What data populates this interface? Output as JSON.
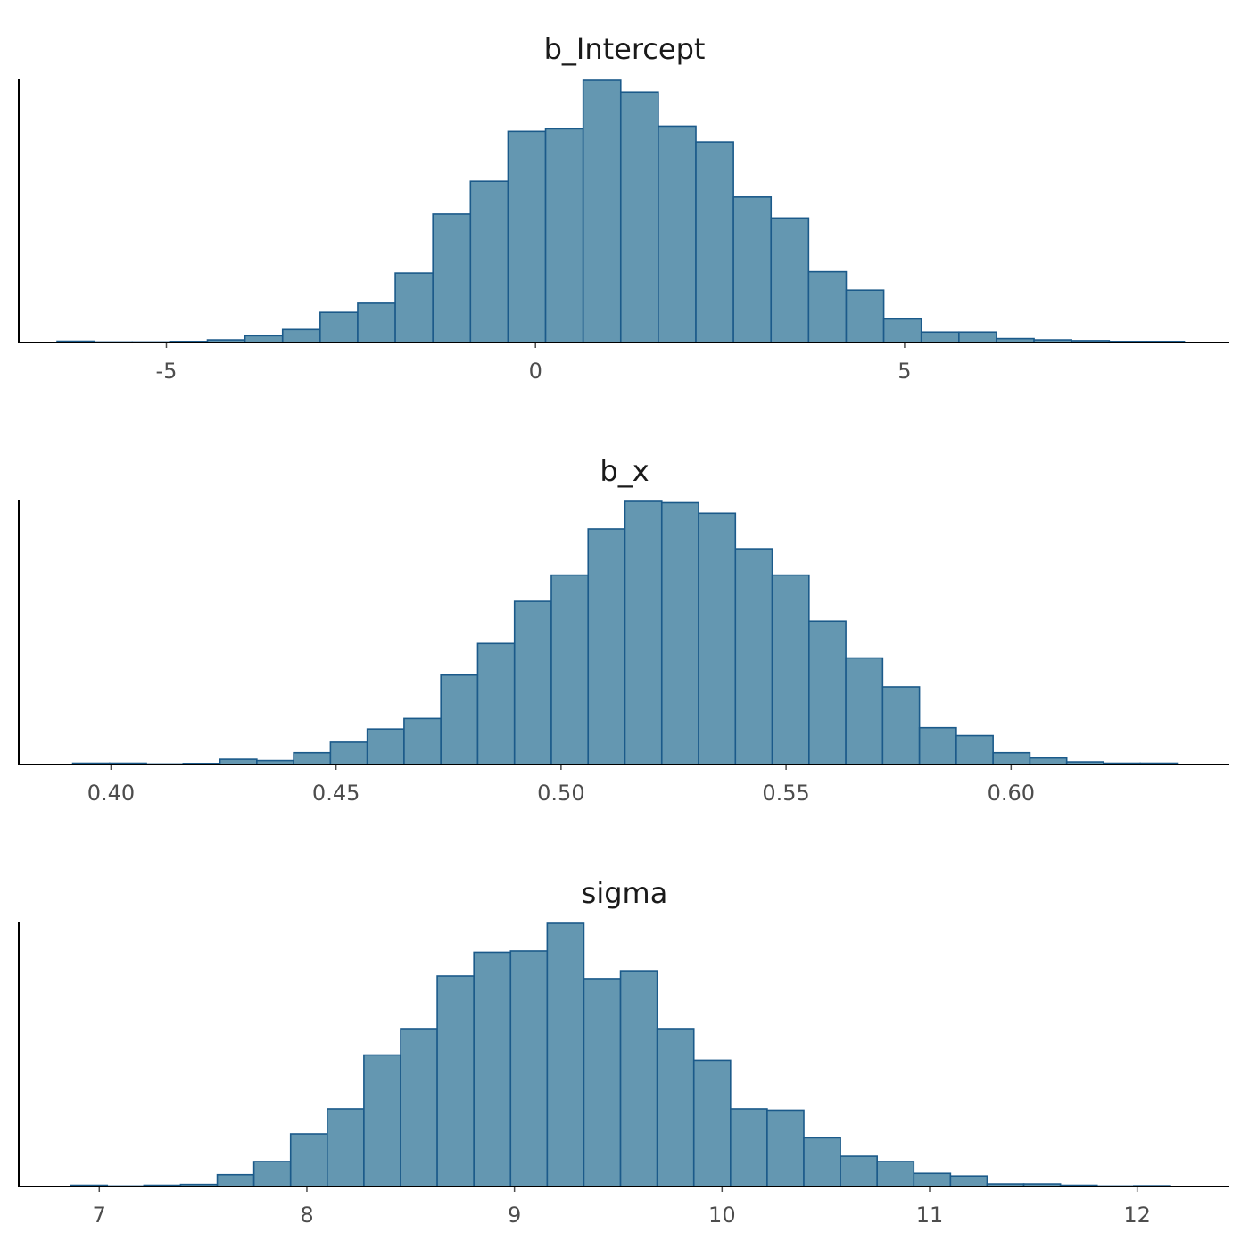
{
  "chart_data": [
    {
      "type": "bar",
      "title": "b_Intercept",
      "xlabel": "",
      "ylabel": "",
      "xlim": [
        -7.0,
        9.4
      ],
      "xticks": [
        -5,
        0,
        5
      ],
      "tick_labels": [
        "-5",
        "0",
        "5"
      ],
      "bin_start": -6.48,
      "bin_width": 0.509,
      "values": [
        0.5,
        0.2,
        0.2,
        0.4,
        1,
        2.6,
        5,
        11.5,
        15,
        26.5,
        49,
        61.5,
        80.5,
        81.5,
        100,
        95.5,
        82.5,
        76.5,
        55.5,
        47.5,
        27,
        20,
        9,
        4,
        4,
        1.5,
        1,
        0.7,
        0.4,
        0.4
      ],
      "grid": false,
      "legend": "none"
    },
    {
      "type": "bar",
      "title": "b_x",
      "xlabel": "",
      "ylabel": "",
      "xlim": [
        0.3795,
        0.6485
      ],
      "xticks": [
        0.4,
        0.45,
        0.5,
        0.55,
        0.6
      ],
      "tick_labels": [
        "0.40",
        "0.45",
        "0.50",
        "0.55",
        "0.60"
      ],
      "bin_start": 0.3915,
      "bin_width": 0.00818,
      "values": [
        0.5,
        0.5,
        0.2,
        0.4,
        2,
        1.5,
        4.5,
        8.5,
        13.5,
        17.5,
        34,
        46,
        62,
        72,
        89.5,
        100,
        99.5,
        95.5,
        82,
        72,
        54.5,
        40.5,
        29.5,
        14,
        11,
        4.5,
        2.5,
        1,
        0.5,
        0.5
      ],
      "grid": false,
      "legend": "none"
    },
    {
      "type": "bar",
      "title": "sigma",
      "xlabel": "",
      "ylabel": "",
      "xlim": [
        6.612,
        12.444
      ],
      "xticks": [
        7,
        8,
        9,
        10,
        11,
        12
      ],
      "tick_labels": [
        "7",
        "8",
        "9",
        "10",
        "11",
        "12"
      ],
      "bin_start": 6.862,
      "bin_width": 0.1766,
      "values": [
        0.5,
        0.2,
        0.5,
        0.8,
        4.5,
        9.5,
        20,
        29.5,
        50,
        60,
        80,
        89,
        89.5,
        100,
        79,
        82,
        60,
        48,
        29.5,
        29,
        18.5,
        11.5,
        9.5,
        5,
        4,
        1,
        1,
        0.5,
        0.2,
        0.3
      ],
      "grid": false,
      "legend": "none"
    }
  ]
}
